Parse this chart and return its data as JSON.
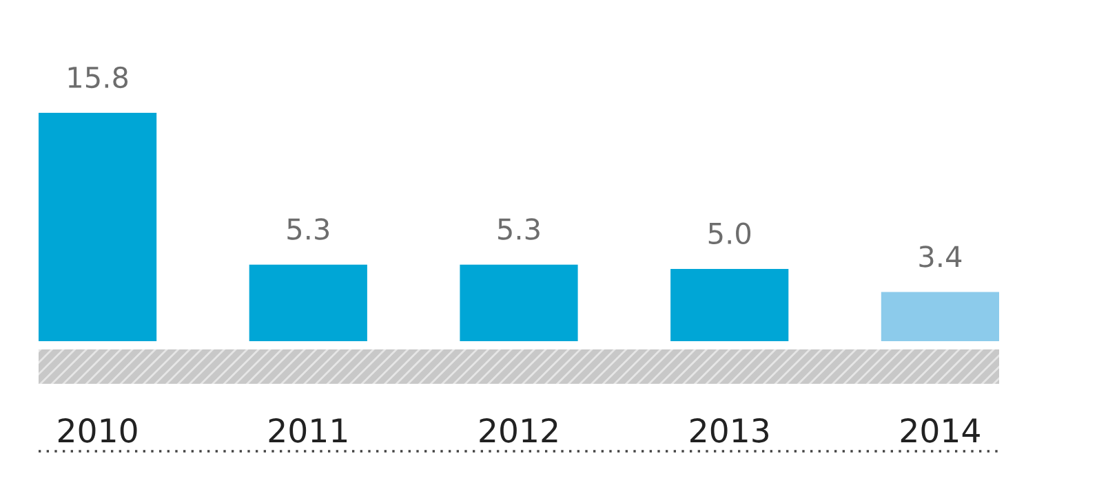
{
  "chart_data": {
    "type": "bar",
    "categories": [
      "2010",
      "2011",
      "2012",
      "2013",
      "2014"
    ],
    "values": [
      15.8,
      5.3,
      5.3,
      5.0,
      3.4
    ],
    "colors": [
      "#00a6d6",
      "#00a6d6",
      "#00a6d6",
      "#00a6d6",
      "#8ccbeb"
    ],
    "value_labels": [
      "15.8",
      "5.3",
      "5.3",
      "5.0",
      "3.4"
    ],
    "grid": false,
    "legend": false
  }
}
